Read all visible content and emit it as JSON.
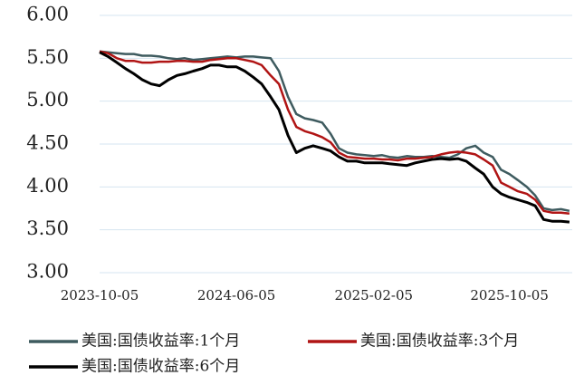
{
  "chart_data": {
    "type": "line",
    "x": [
      "2023-10-05",
      "2023-10-20",
      "2023-11-05",
      "2023-11-20",
      "2023-12-05",
      "2023-12-20",
      "2024-01-05",
      "2024-01-20",
      "2024-02-05",
      "2024-02-20",
      "2024-03-05",
      "2024-03-20",
      "2024-04-05",
      "2024-04-20",
      "2024-05-05",
      "2024-05-20",
      "2024-06-05",
      "2024-06-20",
      "2024-07-05",
      "2024-07-20",
      "2024-08-05",
      "2024-08-20",
      "2024-09-05",
      "2024-09-20",
      "2024-10-05",
      "2024-10-20",
      "2024-11-05",
      "2024-11-20",
      "2024-12-05",
      "2024-12-20",
      "2025-01-05",
      "2025-01-20",
      "2025-02-05",
      "2025-02-20",
      "2025-03-05",
      "2025-03-20",
      "2025-04-05",
      "2025-04-20",
      "2025-05-05",
      "2025-05-20",
      "2025-06-05",
      "2025-06-20",
      "2025-07-05",
      "2025-07-20",
      "2025-08-05",
      "2025-08-20",
      "2025-09-05",
      "2025-09-20",
      "2025-10-05",
      "2025-10-20",
      "2025-11-05",
      "2025-11-20",
      "2025-12-05",
      "2025-12-20",
      "2026-01-05",
      "2026-01-20"
    ],
    "series": [
      {
        "name": "美国:国债收益率:1个月",
        "color": "#3e5b5f",
        "values": [
          5.58,
          5.57,
          5.56,
          5.55,
          5.55,
          5.53,
          5.53,
          5.52,
          5.5,
          5.49,
          5.5,
          5.48,
          5.49,
          5.5,
          5.51,
          5.52,
          5.51,
          5.52,
          5.52,
          5.51,
          5.5,
          5.35,
          5.05,
          4.85,
          4.8,
          4.78,
          4.75,
          4.62,
          4.45,
          4.4,
          4.38,
          4.37,
          4.36,
          4.37,
          4.35,
          4.34,
          4.36,
          4.35,
          4.35,
          4.36,
          4.35,
          4.34,
          4.38,
          4.45,
          4.48,
          4.4,
          4.35,
          4.2,
          4.15,
          4.08,
          4.0,
          3.9,
          3.75,
          3.73,
          3.74,
          3.72
        ]
      },
      {
        "name": "美国:国债收益率:3个月",
        "color": "#b01414",
        "values": [
          5.58,
          5.56,
          5.5,
          5.47,
          5.47,
          5.45,
          5.45,
          5.46,
          5.46,
          5.47,
          5.47,
          5.46,
          5.46,
          5.48,
          5.49,
          5.5,
          5.5,
          5.48,
          5.46,
          5.42,
          5.3,
          5.2,
          4.9,
          4.7,
          4.65,
          4.62,
          4.58,
          4.52,
          4.4,
          4.35,
          4.34,
          4.33,
          4.33,
          4.32,
          4.32,
          4.31,
          4.33,
          4.33,
          4.34,
          4.35,
          4.38,
          4.4,
          4.41,
          4.4,
          4.38,
          4.32,
          4.25,
          4.05,
          4.0,
          3.95,
          3.92,
          3.85,
          3.72,
          3.7,
          3.7,
          3.69
        ]
      },
      {
        "name": "美国:国债收益率:6个月",
        "color": "#000000",
        "values": [
          5.57,
          5.52,
          5.45,
          5.38,
          5.32,
          5.25,
          5.2,
          5.18,
          5.25,
          5.3,
          5.32,
          5.35,
          5.38,
          5.42,
          5.42,
          5.4,
          5.4,
          5.35,
          5.28,
          5.2,
          5.05,
          4.9,
          4.6,
          4.4,
          4.45,
          4.48,
          4.45,
          4.42,
          4.35,
          4.3,
          4.3,
          4.28,
          4.28,
          4.28,
          4.27,
          4.26,
          4.25,
          4.28,
          4.3,
          4.32,
          4.33,
          4.32,
          4.33,
          4.3,
          4.22,
          4.15,
          4.0,
          3.92,
          3.88,
          3.85,
          3.82,
          3.78,
          3.62,
          3.6,
          3.6,
          3.59
        ]
      }
    ],
    "xlim": [
      "2023-10-05",
      "2026-01-25"
    ],
    "xticks": [
      "2023-10-05",
      "2024-06-05",
      "2025-02-05",
      "2025-10-05"
    ],
    "ylim": [
      3,
      6
    ],
    "yticks": [
      {
        "value": 3,
        "label": "3.00"
      },
      {
        "value": 3.5,
        "label": "3.50"
      },
      {
        "value": 4,
        "label": "4.00"
      },
      {
        "value": 4.5,
        "label": "4.50"
      },
      {
        "value": 5,
        "label": "5.00"
      },
      {
        "value": 5.5,
        "label": "5.50"
      },
      {
        "value": 6,
        "label": "6.00"
      }
    ],
    "grid": true,
    "legend": "bottom"
  }
}
